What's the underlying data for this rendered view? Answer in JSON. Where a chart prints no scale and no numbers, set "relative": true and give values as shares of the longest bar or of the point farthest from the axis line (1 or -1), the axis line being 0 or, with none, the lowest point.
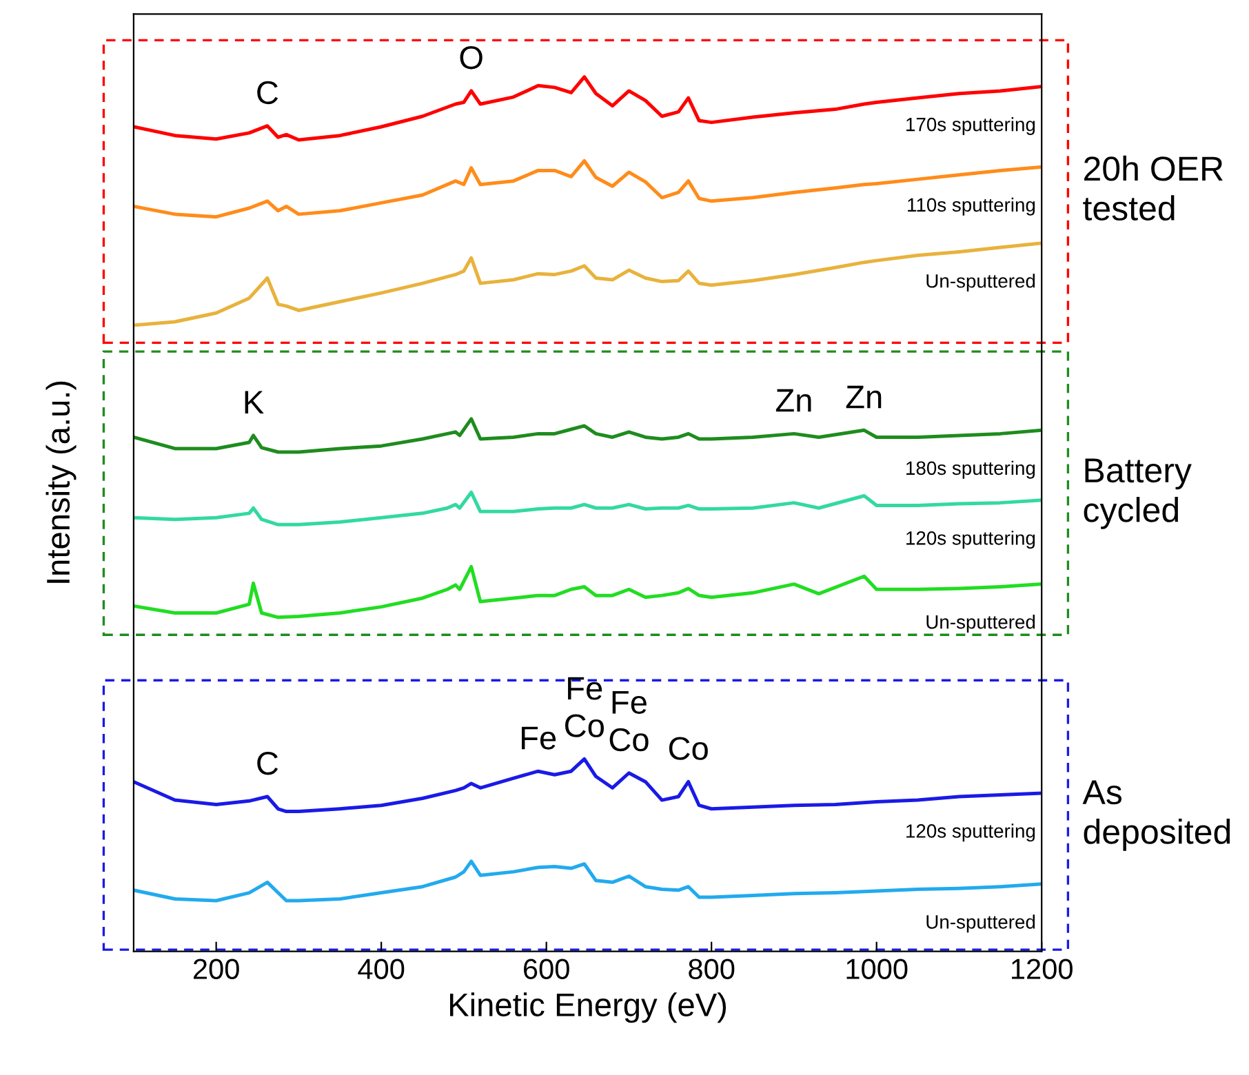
{
  "chart_data": {
    "type": "line",
    "relative": true,
    "xlabel": "Kinetic Energy (eV)",
    "ylabel": "Intensity (a.u.)",
    "xlim": [
      100,
      1200
    ],
    "xticks": [
      200,
      400,
      600,
      800,
      1000,
      1200
    ],
    "tick_labels": "x",
    "grid": false,
    "legend": false,
    "line_style": "solid",
    "marker": "none",
    "series": [
      {
        "name": "170s sputtering",
        "color": "#ff0000",
        "x": [
          100,
          150,
          200,
          240,
          262,
          275,
          285,
          300,
          350,
          400,
          450,
          490,
          500,
          509,
          520,
          560,
          590,
          610,
          630,
          646,
          660,
          680,
          700,
          720,
          740,
          760,
          772,
          785,
          800,
          850,
          900,
          950,
          985,
          1000,
          1050,
          1100,
          1150,
          1200
        ],
        "values": [
          0.943,
          0.933,
          0.929,
          0.936,
          0.944,
          0.931,
          0.934,
          0.928,
          0.933,
          0.943,
          0.955,
          0.969,
          0.971,
          0.984,
          0.969,
          0.977,
          0.99,
          0.988,
          0.982,
          1.0,
          0.981,
          0.967,
          0.984,
          0.973,
          0.955,
          0.96,
          0.976,
          0.95,
          0.948,
          0.954,
          0.959,
          0.963,
          0.969,
          0.971,
          0.976,
          0.981,
          0.984,
          0.989
        ]
      },
      {
        "name": "110s sputtering",
        "color": "#ff8c1a",
        "x": [
          100,
          150,
          200,
          240,
          262,
          275,
          285,
          300,
          350,
          400,
          450,
          490,
          500,
          509,
          520,
          560,
          590,
          610,
          630,
          646,
          660,
          680,
          700,
          720,
          740,
          760,
          772,
          785,
          800,
          850,
          900,
          950,
          985,
          1000,
          1050,
          1100,
          1150,
          1200
        ],
        "values": [
          0.852,
          0.843,
          0.84,
          0.85,
          0.858,
          0.847,
          0.852,
          0.843,
          0.847,
          0.856,
          0.865,
          0.881,
          0.877,
          0.896,
          0.877,
          0.881,
          0.893,
          0.893,
          0.886,
          0.904,
          0.885,
          0.875,
          0.891,
          0.88,
          0.862,
          0.868,
          0.881,
          0.861,
          0.858,
          0.862,
          0.868,
          0.873,
          0.877,
          0.878,
          0.883,
          0.888,
          0.893,
          0.897
        ]
      },
      {
        "name": "Un-sputtered",
        "color": "#e8b23c",
        "x": [
          100,
          150,
          200,
          240,
          262,
          275,
          285,
          300,
          350,
          400,
          450,
          490,
          500,
          509,
          520,
          560,
          590,
          610,
          630,
          646,
          660,
          680,
          700,
          720,
          740,
          760,
          772,
          785,
          800,
          850,
          900,
          950,
          985,
          1000,
          1050,
          1100,
          1150,
          1200
        ],
        "values": [
          0.716,
          0.72,
          0.73,
          0.747,
          0.77,
          0.74,
          0.738,
          0.733,
          0.743,
          0.753,
          0.764,
          0.774,
          0.778,
          0.793,
          0.764,
          0.768,
          0.775,
          0.774,
          0.778,
          0.784,
          0.77,
          0.768,
          0.779,
          0.77,
          0.766,
          0.767,
          0.778,
          0.764,
          0.762,
          0.767,
          0.774,
          0.782,
          0.788,
          0.79,
          0.796,
          0.8,
          0.805,
          0.81
        ]
      },
      {
        "name": "180s sputtering",
        "color": "#1e8c1e",
        "x": [
          100,
          150,
          200,
          240,
          245,
          255,
          275,
          300,
          350,
          400,
          450,
          480,
          490,
          495,
          509,
          520,
          560,
          590,
          610,
          630,
          646,
          660,
          680,
          700,
          720,
          740,
          760,
          772,
          785,
          800,
          850,
          900,
          930,
          985,
          1000,
          1050,
          1100,
          1150,
          1200
        ],
        "values": [
          0.588,
          0.575,
          0.575,
          0.582,
          0.59,
          0.576,
          0.571,
          0.571,
          0.575,
          0.578,
          0.586,
          0.592,
          0.594,
          0.59,
          0.609,
          0.586,
          0.588,
          0.592,
          0.592,
          0.597,
          0.601,
          0.592,
          0.588,
          0.594,
          0.588,
          0.586,
          0.588,
          0.592,
          0.586,
          0.586,
          0.588,
          0.592,
          0.588,
          0.596,
          0.588,
          0.588,
          0.59,
          0.592,
          0.596
        ]
      },
      {
        "name": "120s sputtering",
        "color": "#33d9a0",
        "x": [
          100,
          150,
          200,
          240,
          245,
          255,
          275,
          300,
          350,
          400,
          450,
          480,
          490,
          495,
          509,
          520,
          560,
          590,
          610,
          630,
          646,
          660,
          680,
          700,
          720,
          740,
          760,
          772,
          785,
          800,
          850,
          900,
          930,
          985,
          1000,
          1050,
          1100,
          1150,
          1200
        ],
        "values": [
          0.496,
          0.494,
          0.496,
          0.501,
          0.507,
          0.494,
          0.488,
          0.488,
          0.491,
          0.496,
          0.501,
          0.507,
          0.511,
          0.507,
          0.525,
          0.503,
          0.503,
          0.506,
          0.507,
          0.507,
          0.511,
          0.507,
          0.507,
          0.511,
          0.506,
          0.507,
          0.507,
          0.51,
          0.506,
          0.506,
          0.507,
          0.513,
          0.507,
          0.521,
          0.51,
          0.51,
          0.512,
          0.513,
          0.516
        ]
      },
      {
        "name": "Un-sputtered",
        "color": "#22dd22",
        "x": [
          100,
          150,
          200,
          240,
          245,
          255,
          275,
          300,
          350,
          400,
          450,
          480,
          490,
          495,
          509,
          520,
          560,
          590,
          610,
          630,
          646,
          660,
          680,
          700,
          720,
          740,
          760,
          772,
          785,
          800,
          850,
          900,
          930,
          985,
          1000,
          1050,
          1100,
          1150,
          1200
        ],
        "values": [
          0.395,
          0.387,
          0.387,
          0.397,
          0.421,
          0.387,
          0.382,
          0.383,
          0.387,
          0.394,
          0.404,
          0.414,
          0.419,
          0.414,
          0.44,
          0.4,
          0.404,
          0.407,
          0.407,
          0.414,
          0.417,
          0.407,
          0.407,
          0.414,
          0.405,
          0.407,
          0.41,
          0.415,
          0.407,
          0.405,
          0.41,
          0.42,
          0.409,
          0.429,
          0.414,
          0.414,
          0.415,
          0.417,
          0.42
        ]
      },
      {
        "name": "120s sputtering",
        "color": "#1a1ae6",
        "x": [
          100,
          150,
          200,
          240,
          262,
          275,
          285,
          300,
          350,
          400,
          450,
          490,
          500,
          509,
          520,
          560,
          590,
          610,
          630,
          646,
          660,
          680,
          700,
          720,
          740,
          760,
          772,
          785,
          800,
          850,
          900,
          950,
          1000,
          1050,
          1100,
          1150,
          1200
        ],
        "values": [
          0.194,
          0.173,
          0.168,
          0.172,
          0.177,
          0.163,
          0.16,
          0.16,
          0.163,
          0.167,
          0.175,
          0.184,
          0.187,
          0.192,
          0.187,
          0.198,
          0.206,
          0.202,
          0.206,
          0.22,
          0.2,
          0.187,
          0.204,
          0.194,
          0.173,
          0.177,
          0.194,
          0.167,
          0.163,
          0.165,
          0.167,
          0.168,
          0.171,
          0.173,
          0.177,
          0.179,
          0.181
        ]
      },
      {
        "name": "Un-sputtered",
        "color": "#22aaee",
        "x": [
          100,
          150,
          200,
          240,
          262,
          275,
          285,
          300,
          350,
          400,
          450,
          490,
          500,
          509,
          520,
          560,
          590,
          610,
          630,
          646,
          660,
          680,
          700,
          720,
          740,
          760,
          772,
          785,
          800,
          850,
          900,
          950,
          1000,
          1050,
          1100,
          1150,
          1200
        ],
        "values": [
          0.07,
          0.06,
          0.058,
          0.067,
          0.079,
          0.067,
          0.058,
          0.058,
          0.06,
          0.067,
          0.074,
          0.085,
          0.091,
          0.103,
          0.087,
          0.091,
          0.096,
          0.097,
          0.095,
          0.1,
          0.081,
          0.079,
          0.086,
          0.074,
          0.071,
          0.07,
          0.074,
          0.062,
          0.062,
          0.064,
          0.066,
          0.067,
          0.069,
          0.071,
          0.072,
          0.074,
          0.077
        ]
      }
    ],
    "annotations": [
      {
        "text": "C",
        "x": 262,
        "y": 0.944
      },
      {
        "text": "O",
        "x": 509,
        "y": 0.984
      },
      {
        "text": "K",
        "x": 245,
        "y": 0.59
      },
      {
        "text": "Zn",
        "x": 900,
        "y": 0.592
      },
      {
        "text": "Zn",
        "x": 985,
        "y": 0.596
      },
      {
        "text": "C",
        "x": 262,
        "y": 0.177
      },
      {
        "text": "Fe",
        "x": 590,
        "y": 0.206
      },
      {
        "text": "Fe\nCo",
        "x": 646,
        "y": 0.22
      },
      {
        "text": "Fe\nCo",
        "x": 700,
        "y": 0.204
      },
      {
        "text": "Co",
        "x": 772,
        "y": 0.194
      },
      "20h OER\ntested",
      "Battery\ncycled",
      "As\ndeposited"
    ]
  }
}
